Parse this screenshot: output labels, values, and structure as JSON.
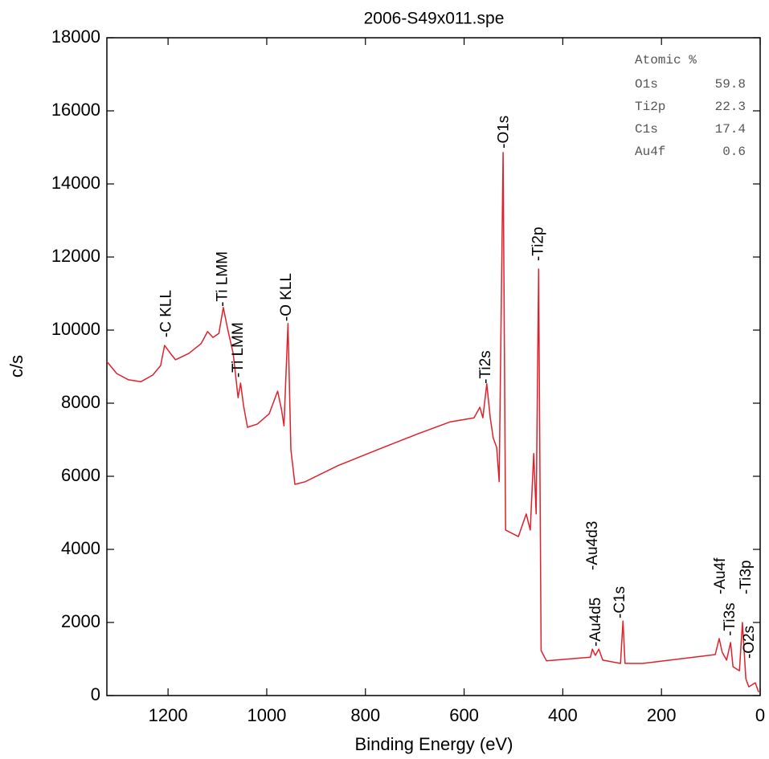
{
  "chart_data": {
    "type": "line",
    "title": "2006-S49x011.spe",
    "x_label": "Binding Energy (eV)",
    "y_label": "c/s",
    "xlim": [
      1324,
      0
    ],
    "ylim": [
      0,
      18000
    ],
    "xticks": [
      1200,
      1000,
      800,
      600,
      400,
      200,
      0
    ],
    "yticks": [
      0,
      2000,
      4000,
      6000,
      8000,
      10000,
      12000,
      14000,
      16000,
      18000
    ],
    "x": [
      1324,
      1304,
      1280,
      1255,
      1231,
      1215,
      1207,
      1195,
      1185,
      1158,
      1133,
      1120,
      1109,
      1097,
      1088,
      1079,
      1068,
      1058,
      1053,
      1047,
      1039,
      1019,
      995,
      978,
      970,
      965,
      957,
      951,
      943,
      922,
      856,
      775,
      694,
      628,
      580,
      568,
      562,
      554,
      547,
      541,
      534,
      529,
      521,
      516,
      490,
      474,
      466,
      459,
      454,
      449,
      444,
      433,
      344,
      340,
      334,
      327,
      319,
      283,
      278,
      274,
      238,
      91,
      83,
      77,
      68,
      60,
      55,
      42,
      36,
      29,
      23,
      10,
      3
    ],
    "series": [
      {
        "color": "#e0202a",
        "values": [
          9140,
          8810,
          8640,
          8590,
          8770,
          9030,
          9580,
          9360,
          9190,
          9360,
          9630,
          9960,
          9800,
          9910,
          10620,
          10020,
          9360,
          8150,
          8550,
          7930,
          7340,
          7430,
          7710,
          8330,
          7820,
          7380,
          10180,
          6730,
          5780,
          5850,
          6290,
          6730,
          7160,
          7490,
          7600,
          7890,
          7600,
          8530,
          7600,
          7050,
          6790,
          5850,
          14860,
          4530,
          4350,
          4970,
          4530,
          6620,
          4970,
          11670,
          1230,
          950,
          1050,
          1270,
          1100,
          1270,
          970,
          880,
          2040,
          880,
          880,
          1120,
          1560,
          1190,
          970,
          1450,
          790,
          680,
          2000,
          460,
          240,
          350,
          90
        ]
      }
    ],
    "annotations": [
      {
        "text": "-C KLL",
        "x": 1203,
        "y": 9800
      },
      {
        "text": "-Ti LMM",
        "x": 1089,
        "y": 10640
      },
      {
        "text": "-Ti LMM",
        "x": 1057,
        "y": 8700
      },
      {
        "text": "-O KLL",
        "x": 959,
        "y": 10240
      },
      {
        "text": "-Ti2s",
        "x": 555,
        "y": 8530
      },
      {
        "text": "-O1s",
        "x": 519,
        "y": 14970
      },
      {
        "text": "-Ti2p",
        "x": 449,
        "y": 11890
      },
      {
        "text": "-Au4d3",
        "x": 339,
        "y": 3430
      },
      {
        "text": "-Au4d5",
        "x": 332,
        "y": 1340
      },
      {
        "text": "-C1s",
        "x": 283,
        "y": 2110
      },
      {
        "text": "-Au4f",
        "x": 80,
        "y": 2770
      },
      {
        "text": "-Ti3s",
        "x": 60,
        "y": 1630
      },
      {
        "text": "-Ti3p",
        "x": 28,
        "y": 2770
      },
      {
        "text": "-O2s",
        "x": 21,
        "y": 1010
      }
    ],
    "table": {
      "header": "Atomic %",
      "rows": [
        [
          "O1s",
          59.8
        ],
        [
          "Ti2p",
          22.3
        ],
        [
          "C1s",
          17.4
        ],
        [
          "Au4f",
          0.6
        ]
      ]
    }
  }
}
